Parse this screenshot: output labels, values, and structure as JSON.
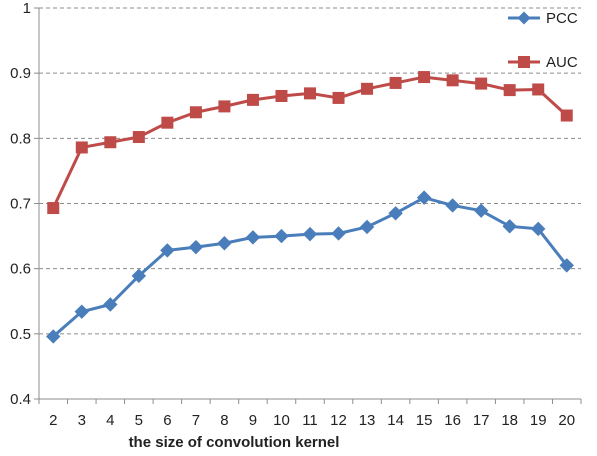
{
  "chart_data": {
    "type": "line",
    "x": [
      2,
      3,
      4,
      5,
      6,
      7,
      8,
      9,
      10,
      11,
      12,
      13,
      14,
      15,
      16,
      17,
      18,
      19,
      20
    ],
    "xlabel": "the size of convolution kernel",
    "ylabel": "",
    "ylim": [
      0.4,
      1
    ],
    "yticks": [
      "0.4",
      "0.5",
      "0.6",
      "0.7",
      "0.8",
      "0.9",
      "1"
    ],
    "xticks": [
      "2",
      "3",
      "4",
      "5",
      "6",
      "7",
      "8",
      "9",
      "10",
      "11",
      "12",
      "13",
      "14",
      "15",
      "16",
      "17",
      "18",
      "19",
      "20"
    ],
    "grid": true,
    "legend_position": "top-right",
    "series": [
      {
        "name": "PCC",
        "color": "#4a7ebb",
        "marker": "diamond",
        "values": [
          0.496,
          0.534,
          0.545,
          0.589,
          0.628,
          0.633,
          0.639,
          0.648,
          0.65,
          0.653,
          0.654,
          0.664,
          0.685,
          0.709,
          0.697,
          0.689,
          0.665,
          0.661,
          0.605
        ]
      },
      {
        "name": "AUC",
        "color": "#be4b48",
        "marker": "square",
        "values": [
          0.693,
          0.786,
          0.794,
          0.802,
          0.824,
          0.84,
          0.849,
          0.859,
          0.865,
          0.869,
          0.862,
          0.876,
          0.885,
          0.894,
          0.889,
          0.884,
          0.874,
          0.875,
          0.835
        ]
      }
    ]
  }
}
